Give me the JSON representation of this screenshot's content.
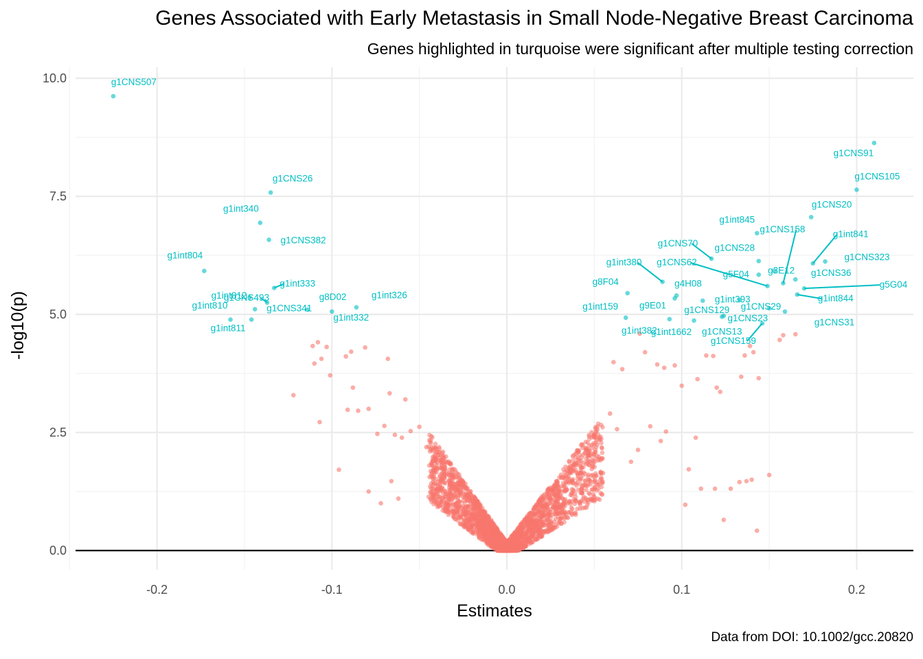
{
  "chart_data": {
    "type": "scatter",
    "title": "Genes Associated with Early Metastasis in Small Node-Negative Breast Carcinoma",
    "subtitle": "Genes highlighted in turquoise were significant after multiple testing correction",
    "caption": "Data from DOI: 10.1002/gcc.20820",
    "xlabel": "Estimates",
    "ylabel": "-log10(p)",
    "xlim": [
      -0.25,
      0.233
    ],
    "ylim": [
      -0.35,
      10.2
    ],
    "xticks": [
      -0.2,
      -0.1,
      0.0,
      0.1,
      0.2
    ],
    "xtick_labels": [
      "-0.2",
      "-0.1",
      "0.0",
      "0.1",
      "0.2"
    ],
    "yticks": [
      0.0,
      2.5,
      5.0,
      7.5,
      10.0
    ],
    "ytick_labels": [
      "0.0",
      "2.5",
      "5.0",
      "7.5",
      "10.0"
    ],
    "grid": true,
    "hline_y": 0,
    "colors": {
      "significant": "#00BFC4",
      "not_significant": "#F8766D"
    },
    "series": [
      {
        "group": "significant",
        "points": [
          {
            "label": "g1CNS507",
            "x": -0.225,
            "y": 9.62
          },
          {
            "label": "g1CNS26",
            "x": -0.135,
            "y": 7.58
          },
          {
            "label": "g1int340",
            "x": -0.141,
            "y": 6.94
          },
          {
            "label": "g1CNS382",
            "x": -0.136,
            "y": 6.58
          },
          {
            "label": "g1int804",
            "x": -0.173,
            "y": 5.92
          },
          {
            "label": "g1CNS493",
            "x": -0.137,
            "y": 5.25
          },
          {
            "label": "g1int333",
            "x": -0.133,
            "y": 5.56
          },
          {
            "label": "g1int812",
            "x": -0.147,
            "y": 5.36
          },
          {
            "label": "g1int810",
            "x": -0.158,
            "y": 4.89
          },
          {
            "label": "g1int811",
            "x": -0.146,
            "y": 4.89
          },
          {
            "label": "g1CNS341",
            "x": -0.144,
            "y": 5.11
          },
          {
            "label": "g8D02",
            "x": -0.114,
            "y": 5.1
          },
          {
            "label": "g1int332",
            "x": -0.1,
            "y": 5.06
          },
          {
            "label": "g1int326",
            "x": -0.086,
            "y": 5.15
          },
          {
            "label": "g1CNS91",
            "x": 0.21,
            "y": 8.63
          },
          {
            "label": "g1CNS105",
            "x": 0.2,
            "y": 7.64
          },
          {
            "label": "g1CNS20",
            "x": 0.174,
            "y": 7.06
          },
          {
            "label": "g1int845",
            "x": 0.143,
            "y": 6.72
          },
          {
            "label": "g1CNS70",
            "x": 0.117,
            "y": 6.18
          },
          {
            "label": "g1CNS28",
            "x": 0.144,
            "y": 6.13
          },
          {
            "label": "g1CNS158",
            "x": 0.158,
            "y": 5.66
          },
          {
            "label": "g1int841",
            "x": 0.175,
            "y": 6.08
          },
          {
            "label": "g1CNS323",
            "x": 0.182,
            "y": 6.12
          },
          {
            "label": "g3E12",
            "x": 0.153,
            "y": 5.92
          },
          {
            "label": "g5F04",
            "x": 0.144,
            "y": 5.84
          },
          {
            "label": "g1CNS62",
            "x": 0.149,
            "y": 5.6
          },
          {
            "label": "g1int380",
            "x": 0.089,
            "y": 5.69
          },
          {
            "label": "g4H08",
            "x": 0.097,
            "y": 5.4
          },
          {
            "label": "g1int393",
            "x": 0.133,
            "y": 5.3
          },
          {
            "label": "g8F04",
            "x": 0.069,
            "y": 5.45
          },
          {
            "label": "g1CNS36",
            "x": 0.165,
            "y": 5.74
          },
          {
            "label": "g5G04",
            "x": 0.17,
            "y": 5.55
          },
          {
            "label": "g1int844",
            "x": 0.166,
            "y": 5.42
          },
          {
            "label": "g1CNS29",
            "x": 0.15,
            "y": 5.13
          },
          {
            "label": "g1int159",
            "x": 0.068,
            "y": 4.93
          },
          {
            "label": "g9E01",
            "x": 0.096,
            "y": 5.34
          },
          {
            "label": "g1CNS129",
            "x": 0.112,
            "y": 5.29
          },
          {
            "label": "g1CNS23",
            "x": 0.124,
            "y": 4.97
          },
          {
            "label": "g1int382",
            "x": 0.093,
            "y": 4.9
          },
          {
            "label": "g1int1662",
            "x": 0.107,
            "y": 4.87
          },
          {
            "label": "g1CNS13",
            "x": 0.123,
            "y": 4.95
          },
          {
            "label": "g1CNS159",
            "x": 0.146,
            "y": 4.81
          },
          {
            "label": "g1CNS31",
            "x": 0.159,
            "y": 5.06
          }
        ]
      },
      {
        "group": "not_significant",
        "points": [
          {
            "x": -0.108,
            "y": 4.41
          },
          {
            "x": -0.111,
            "y": 4.33
          },
          {
            "x": -0.103,
            "y": 4.31
          },
          {
            "x": -0.092,
            "y": 4.11
          },
          {
            "x": -0.089,
            "y": 4.21
          },
          {
            "x": -0.081,
            "y": 4.3
          },
          {
            "x": -0.068,
            "y": 4.06
          },
          {
            "x": -0.11,
            "y": 3.96
          },
          {
            "x": -0.101,
            "y": 3.71
          },
          {
            "x": -0.122,
            "y": 3.29
          },
          {
            "x": -0.107,
            "y": 2.72
          },
          {
            "x": -0.096,
            "y": 1.71
          },
          {
            "x": -0.088,
            "y": 3.45
          },
          {
            "x": -0.085,
            "y": 2.96
          },
          {
            "x": -0.079,
            "y": 3.0
          },
          {
            "x": -0.067,
            "y": 3.33
          },
          {
            "x": -0.058,
            "y": 3.2
          },
          {
            "x": -0.074,
            "y": 2.47
          },
          {
            "x": -0.106,
            "y": 4.06
          },
          {
            "x": -0.091,
            "y": 2.98
          },
          {
            "x": 0.061,
            "y": 3.99
          },
          {
            "x": 0.066,
            "y": 3.84
          },
          {
            "x": 0.076,
            "y": 4.59
          },
          {
            "x": 0.079,
            "y": 4.2
          },
          {
            "x": 0.086,
            "y": 3.94
          },
          {
            "x": 0.09,
            "y": 3.87
          },
          {
            "x": 0.096,
            "y": 3.92
          },
          {
            "x": 0.1,
            "y": 3.49
          },
          {
            "x": 0.109,
            "y": 3.63
          },
          {
            "x": 0.114,
            "y": 4.13
          },
          {
            "x": 0.118,
            "y": 4.12
          },
          {
            "x": 0.12,
            "y": 3.45
          },
          {
            "x": 0.122,
            "y": 3.36
          },
          {
            "x": 0.134,
            "y": 3.68
          },
          {
            "x": 0.136,
            "y": 4.13
          },
          {
            "x": 0.139,
            "y": 4.33
          },
          {
            "x": 0.141,
            "y": 4.2
          },
          {
            "x": 0.144,
            "y": 3.65
          },
          {
            "x": 0.156,
            "y": 4.46
          },
          {
            "x": 0.158,
            "y": 4.56
          },
          {
            "x": 0.165,
            "y": 4.58
          },
          {
            "x": 0.111,
            "y": 1.31
          },
          {
            "x": 0.119,
            "y": 1.31
          },
          {
            "x": 0.124,
            "y": 0.65
          },
          {
            "x": 0.128,
            "y": 1.31
          },
          {
            "x": 0.133,
            "y": 1.45
          },
          {
            "x": 0.137,
            "y": 1.47
          },
          {
            "x": 0.14,
            "y": 1.5
          },
          {
            "x": 0.143,
            "y": 0.42
          },
          {
            "x": 0.15,
            "y": 1.6
          },
          {
            "x": 0.102,
            "y": 0.97
          },
          {
            "x": 0.108,
            "y": 2.39
          },
          {
            "x": 0.104,
            "y": 1.72
          },
          {
            "x": 0.091,
            "y": 2.52
          },
          {
            "x": 0.088,
            "y": 2.32
          },
          {
            "x": 0.082,
            "y": 2.63
          },
          {
            "x": 0.075,
            "y": 2.13
          },
          {
            "x": 0.071,
            "y": 1.88
          },
          {
            "x": 0.063,
            "y": 2.57
          },
          {
            "x": 0.059,
            "y": 2.9
          },
          {
            "x": 0.055,
            "y": 1.64
          },
          {
            "x": 0.05,
            "y": 2.43
          },
          {
            "x": -0.07,
            "y": 2.64
          },
          {
            "x": -0.064,
            "y": 2.45
          },
          {
            "x": -0.06,
            "y": 2.39
          },
          {
            "x": -0.055,
            "y": 2.53
          },
          {
            "x": -0.05,
            "y": 2.62
          },
          {
            "x": -0.046,
            "y": 2.19
          },
          {
            "x": -0.041,
            "y": 1.92
          },
          {
            "x": -0.036,
            "y": 1.87
          },
          {
            "x": -0.079,
            "y": 1.25
          },
          {
            "x": -0.072,
            "y": 1.0
          },
          {
            "x": -0.066,
            "y": 1.47
          },
          {
            "x": -0.062,
            "y": 1.1
          }
        ]
      }
    ],
    "volcano_band": {
      "note": "dense cloud of non-significant points along |estimate| vs -log10(p) curve near the origin"
    }
  }
}
